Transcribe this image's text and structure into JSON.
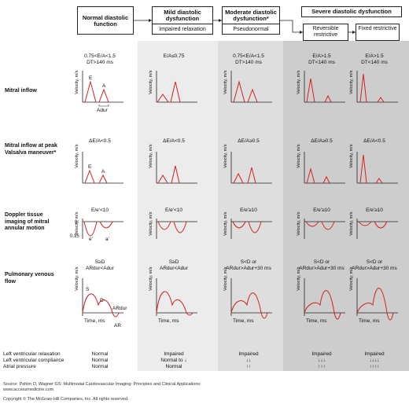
{
  "header": {
    "normal": {
      "title": "Normal diastolic function",
      "sub": ""
    },
    "mild": {
      "title": "Mild diastolic dysfunction",
      "sub": "Impaired relaxation"
    },
    "moderate": {
      "title": "Moderate diastolic dysfunction*",
      "sub": "Pseudonormal"
    },
    "severe": {
      "title": "Severe diastolic dysfunction",
      "sub": ""
    },
    "reversible": {
      "title": "Reversible restrictive"
    },
    "fixed": {
      "title": "Fixed restrictive"
    }
  },
  "rows": {
    "mitral": {
      "label": "Mitral inflow",
      "crit": [
        "0.75<E/A<1.5\nDT>140 ms",
        "E/A≤0.75",
        "0.75<E/A<1.5\nDT>140 ms",
        "E/A>1.5\nDT<140 ms",
        "E/A>1.5\nDT<140 ms"
      ],
      "peaks": [
        "E",
        "A",
        "Adur"
      ]
    },
    "valsalva": {
      "label": "Mitral inflow at peak Valsalva maneuver*",
      "crit": [
        "ΔE/A<0.5",
        "ΔE/A<0.5",
        "ΔE/A≥0.5",
        "ΔE/A≥0.5",
        "ΔE/A<0.5"
      ],
      "peaks": [
        "E",
        "A"
      ]
    },
    "doppler": {
      "label": "Doppler tissue imaging of mitral annular motion",
      "crit": [
        "E/e'<10",
        "E/e'<10",
        "E/e'≥10",
        "E/e'≥10",
        "E/e'≥10"
      ],
      "peaks": [
        "e'",
        "a'"
      ],
      "ticks": [
        "0",
        "0.15"
      ]
    },
    "pulm": {
      "label": "Pulmonary venous flow",
      "crit": [
        "S≥D\nARdur<Adur",
        "S≥D\nARdur<Adur",
        "S<D or\nARdur>Adur+30 ms",
        "S<D or\nARdur>Adur+30 ms",
        "S<D or\nARdur>Adur+30 ms"
      ],
      "peaks": [
        "S",
        "D",
        "ARdur",
        "AR"
      ],
      "xlabel": "Time, ms"
    }
  },
  "axis": {
    "ylabel": "Velocity, m/s"
  },
  "bottom": {
    "labels": [
      "Left ventricular relaxation",
      "Left ventricular compliance",
      "Atrial pressure"
    ],
    "cols": [
      [
        "Normal",
        "Normal",
        "Normal"
      ],
      [
        "Impaired",
        "Normal to ↓",
        "Normal"
      ],
      [
        "Impaired",
        "↓↓",
        "↑↑"
      ],
      [
        "Impaired",
        "↓↓↓",
        "↑↑↑"
      ],
      [
        "Impaired",
        "↓↓↓↓",
        "↑↑↑↑"
      ]
    ]
  },
  "footer": {
    "source": "Source: Pahlm O, Wagner GS: Multimodal Cardiovascular Imaging: Principles and Clinical Applications: www.accessmedicine.com",
    "copyright": "Copyright © The McGraw-Hill Companies, Inc. All rights reserved."
  },
  "colors": {
    "curve": "#d62020",
    "shade1": "#ebebeb",
    "shade2": "#dcdcdc",
    "shade3": "#cbcbcb"
  }
}
